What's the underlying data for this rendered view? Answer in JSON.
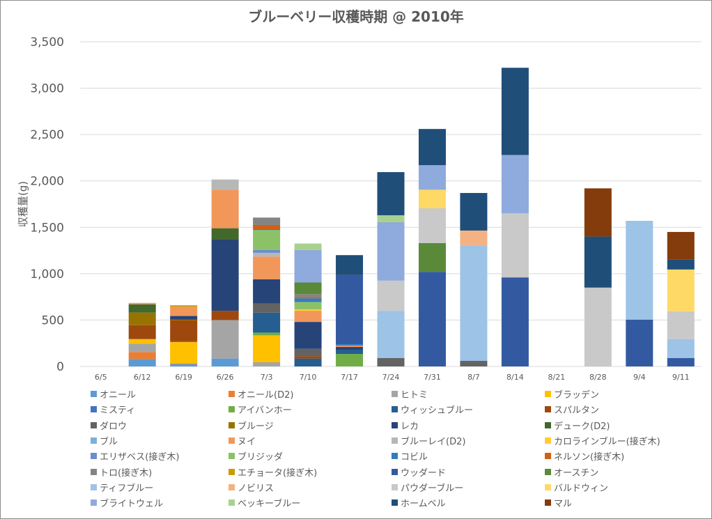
{
  "chart_data": {
    "type": "bar",
    "stacked": true,
    "title": "ブルーベリー収穫時期 @ 2010年",
    "xlabel": "",
    "ylabel": "収穫量(g)",
    "ylim": [
      0,
      3500
    ],
    "yticks": [
      0,
      500,
      1000,
      1500,
      2000,
      2500,
      3000,
      3500
    ],
    "ytick_labels": [
      "0",
      "500",
      "1,000",
      "1,500",
      "2,000",
      "2,500",
      "3,000",
      "3,500"
    ],
    "grid": true,
    "legend_position": "bottom",
    "categories": [
      "6/5",
      "6/12",
      "6/19",
      "6/26",
      "7/3",
      "7/10",
      "7/17",
      "7/24",
      "7/31",
      "8/7",
      "8/14",
      "8/21",
      "8/28",
      "9/4",
      "9/11"
    ],
    "series": [
      {
        "name": "オニール",
        "color": "#5b9bd5",
        "values": [
          0,
          80,
          25,
          85,
          0,
          0,
          0,
          0,
          0,
          0,
          0,
          0,
          0,
          0,
          0
        ]
      },
      {
        "name": "オニール(D2)",
        "color": "#ed7d31",
        "values": [
          0,
          75,
          8,
          0,
          0,
          0,
          0,
          0,
          0,
          0,
          0,
          0,
          0,
          0,
          0
        ]
      },
      {
        "name": "ヒトミ",
        "color": "#a5a5a5",
        "values": [
          0,
          90,
          0,
          415,
          45,
          0,
          0,
          0,
          0,
          0,
          0,
          0,
          0,
          0,
          0
        ]
      },
      {
        "name": "ブラッデン",
        "color": "#ffc000",
        "values": [
          0,
          50,
          230,
          0,
          290,
          0,
          0,
          0,
          0,
          0,
          0,
          0,
          0,
          0,
          0
        ]
      },
      {
        "name": "ミスティ",
        "color": "#4472c4",
        "values": [
          0,
          0,
          8,
          0,
          0,
          0,
          0,
          0,
          0,
          0,
          0,
          0,
          0,
          0,
          0
        ]
      },
      {
        "name": "アイバンホー",
        "color": "#70ad47",
        "values": [
          0,
          0,
          0,
          0,
          30,
          0,
          135,
          0,
          0,
          0,
          0,
          0,
          0,
          0,
          0
        ]
      },
      {
        "name": "ウィッシュブルー",
        "color": "#255e91",
        "values": [
          0,
          0,
          0,
          0,
          215,
          85,
          45,
          0,
          0,
          0,
          0,
          0,
          0,
          0,
          0
        ]
      },
      {
        "name": "スパルタン",
        "color": "#9e480e",
        "values": [
          0,
          150,
          225,
          100,
          0,
          25,
          0,
          0,
          0,
          0,
          0,
          0,
          0,
          0,
          0
        ]
      },
      {
        "name": "ダロウ",
        "color": "#636363",
        "values": [
          0,
          0,
          0,
          0,
          100,
          80,
          0,
          90,
          0,
          60,
          0,
          0,
          0,
          0,
          0
        ]
      },
      {
        "name": "ブルージ",
        "color": "#997300",
        "values": [
          0,
          135,
          8,
          0,
          0,
          0,
          0,
          0,
          0,
          0,
          0,
          0,
          0,
          0,
          0
        ]
      },
      {
        "name": "レカ",
        "color": "#264478",
        "values": [
          0,
          0,
          40,
          770,
          260,
          290,
          30,
          0,
          0,
          0,
          0,
          0,
          0,
          0,
          0
        ]
      },
      {
        "name": "デューク(D2)",
        "color": "#43682b",
        "values": [
          0,
          90,
          0,
          120,
          0,
          0,
          0,
          0,
          0,
          0,
          0,
          0,
          0,
          0,
          0
        ]
      },
      {
        "name": "ブル",
        "color": "#7cafdd",
        "values": [
          0,
          0,
          0,
          0,
          0,
          0,
          0,
          0,
          0,
          0,
          0,
          0,
          0,
          0,
          0
        ]
      },
      {
        "name": "ヌイ",
        "color": "#f1975a",
        "values": [
          0,
          15,
          100,
          415,
          245,
          120,
          15,
          0,
          0,
          0,
          0,
          0,
          0,
          0,
          0
        ]
      },
      {
        "name": "ブルーレイ(D2)",
        "color": "#b7b7b7",
        "values": [
          0,
          0,
          0,
          110,
          40,
          0,
          0,
          0,
          0,
          0,
          0,
          0,
          0,
          0,
          0
        ]
      },
      {
        "name": "カロラインブルー(接ぎ木)",
        "color": "#ffcd33",
        "values": [
          0,
          0,
          0,
          0,
          0,
          15,
          0,
          0,
          0,
          0,
          0,
          0,
          0,
          0,
          0
        ]
      },
      {
        "name": "エリザベス(接ぎ木)",
        "color": "#698ed0",
        "values": [
          0,
          0,
          0,
          0,
          30,
          0,
          0,
          0,
          0,
          0,
          0,
          0,
          0,
          0,
          0
        ]
      },
      {
        "name": "ブリジッダ",
        "color": "#8cc168",
        "values": [
          0,
          0,
          0,
          0,
          215,
          80,
          0,
          0,
          0,
          0,
          0,
          0,
          0,
          0,
          0
        ]
      },
      {
        "name": "コビル",
        "color": "#327dc2",
        "values": [
          0,
          0,
          0,
          0,
          10,
          40,
          15,
          0,
          0,
          0,
          0,
          0,
          0,
          0,
          0
        ]
      },
      {
        "name": "ネルソン(接ぎ木)",
        "color": "#d26012",
        "values": [
          0,
          0,
          0,
          0,
          45,
          15,
          0,
          0,
          0,
          0,
          0,
          0,
          0,
          0,
          0
        ]
      },
      {
        "name": "トロ(接ぎ木)",
        "color": "#848484",
        "values": [
          0,
          0,
          0,
          0,
          80,
          30,
          0,
          0,
          0,
          0,
          0,
          0,
          0,
          0,
          0
        ]
      },
      {
        "name": "エチョータ(接ぎ木)",
        "color": "#cc9a00",
        "values": [
          0,
          0,
          15,
          0,
          0,
          0,
          0,
          0,
          0,
          0,
          0,
          0,
          0,
          0,
          0
        ]
      },
      {
        "name": "ウッダード",
        "color": "#335aa1",
        "values": [
          0,
          0,
          0,
          0,
          0,
          0,
          745,
          0,
          1020,
          0,
          960,
          0,
          0,
          505,
          90
        ]
      },
      {
        "name": "オースチン",
        "color": "#5a8a39",
        "values": [
          0,
          0,
          0,
          0,
          0,
          125,
          0,
          0,
          310,
          0,
          0,
          0,
          0,
          0,
          0
        ]
      },
      {
        "name": "ティフブルー",
        "color": "#9dc3e6",
        "values": [
          0,
          0,
          0,
          0,
          0,
          0,
          0,
          510,
          0,
          1240,
          0,
          0,
          0,
          1065,
          205
        ]
      },
      {
        "name": "ノビリス",
        "color": "#f4b183",
        "values": [
          0,
          0,
          0,
          0,
          0,
          0,
          0,
          0,
          0,
          165,
          0,
          0,
          0,
          0,
          0
        ]
      },
      {
        "name": "パウダーブルー",
        "color": "#c9c9c9",
        "values": [
          0,
          0,
          0,
          0,
          0,
          0,
          0,
          325,
          375,
          0,
          690,
          0,
          850,
          0,
          300
        ]
      },
      {
        "name": "バルドウィン",
        "color": "#ffd966",
        "values": [
          0,
          0,
          0,
          0,
          0,
          0,
          0,
          0,
          200,
          0,
          0,
          0,
          0,
          0,
          450
        ]
      },
      {
        "name": "ブライトウェル",
        "color": "#8faadc",
        "values": [
          0,
          0,
          0,
          0,
          0,
          350,
          0,
          630,
          265,
          0,
          630,
          0,
          0,
          0,
          0
        ]
      },
      {
        "name": "ベッキーブルー",
        "color": "#a9d18e",
        "values": [
          0,
          0,
          0,
          0,
          0,
          70,
          0,
          75,
          0,
          0,
          0,
          0,
          0,
          0,
          0
        ]
      },
      {
        "name": "ホームベル",
        "color": "#1f4e79",
        "values": [
          0,
          0,
          0,
          0,
          0,
          0,
          215,
          465,
          390,
          405,
          940,
          0,
          550,
          0,
          105
        ]
      },
      {
        "name": "マル",
        "color": "#843c0c",
        "values": [
          0,
          0,
          0,
          0,
          0,
          0,
          0,
          0,
          0,
          0,
          0,
          0,
          520,
          0,
          300
        ]
      }
    ]
  },
  "colors": {
    "text": "#595959",
    "grid": "#d9d9d9",
    "frame": "#8c8c8c"
  }
}
